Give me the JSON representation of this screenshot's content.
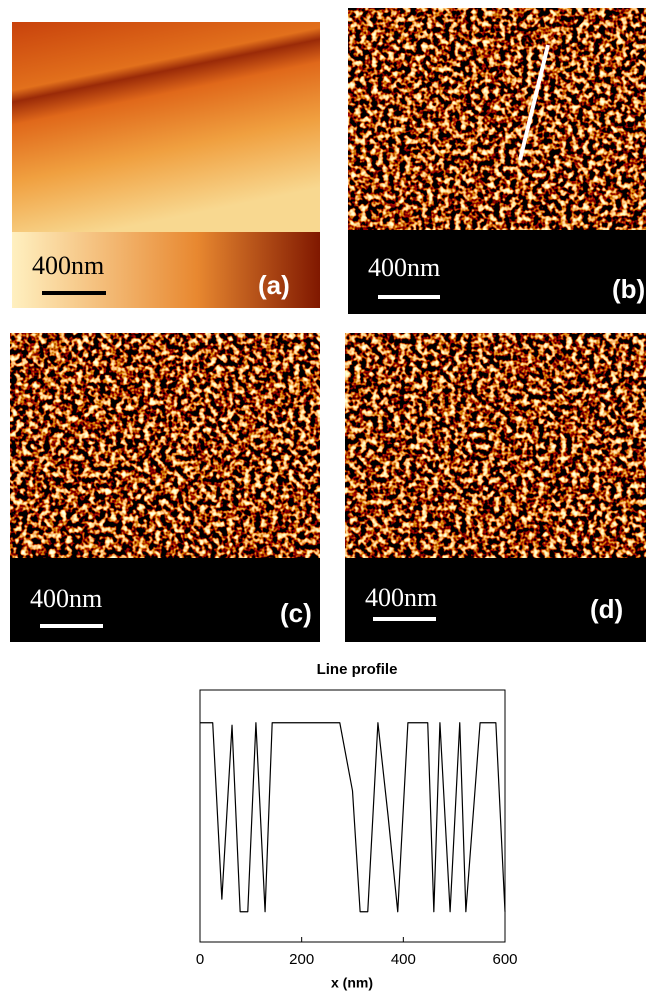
{
  "panels": [
    {
      "scale": "400nm",
      "label": "(a)"
    },
    {
      "scale": "400nm",
      "label": "(b)"
    },
    {
      "scale": "400nm",
      "label": "(c)"
    },
    {
      "scale": "400nm",
      "label": "(d)"
    }
  ],
  "chart_data": {
    "type": "line",
    "title": "Line profile",
    "x_label": "x (nm)",
    "xlim": [
      0,
      600
    ],
    "xticks": [
      0,
      200,
      400,
      600
    ],
    "ylim": [
      0,
      1
    ],
    "x": [
      0,
      25,
      43,
      63,
      79,
      94,
      110,
      128,
      142,
      275,
      300,
      315,
      330,
      350,
      370,
      389,
      409,
      448,
      460,
      472,
      492,
      511,
      523,
      551,
      582,
      600
    ],
    "series": [
      {
        "color": "#000000",
        "values": [
          0.87,
          0.87,
          0.17,
          0.86,
          0.12,
          0.12,
          0.87,
          0.12,
          0.87,
          0.87,
          0.6,
          0.12,
          0.12,
          0.87,
          0.5,
          0.12,
          0.87,
          0.87,
          0.12,
          0.87,
          0.12,
          0.87,
          0.12,
          0.87,
          0.87,
          0.12
        ]
      }
    ]
  }
}
